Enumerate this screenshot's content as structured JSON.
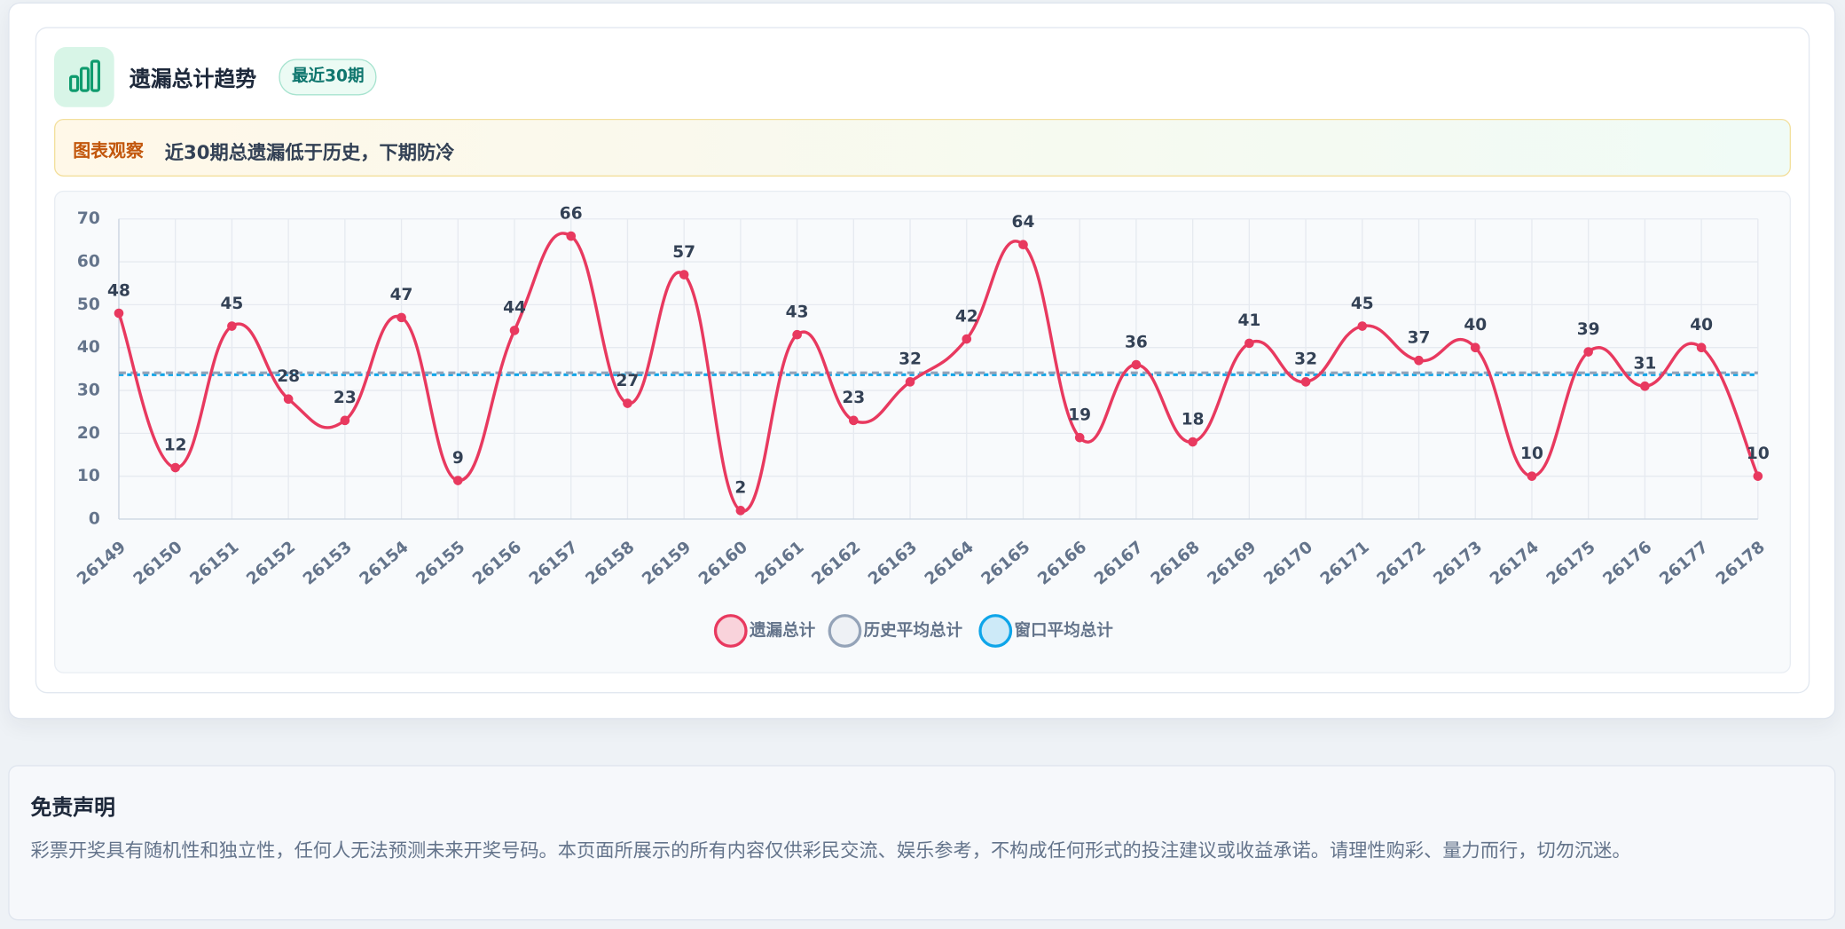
{
  "header": {
    "title": "遗漏总计趋势",
    "badge": "最近30期"
  },
  "observation": {
    "label": "图表观察",
    "text": "近30期总遗漏低于历史，下期防冷"
  },
  "chart_data": {
    "type": "line",
    "categories": [
      "26149",
      "26150",
      "26151",
      "26152",
      "26153",
      "26154",
      "26155",
      "26156",
      "26157",
      "26158",
      "26159",
      "26160",
      "26161",
      "26162",
      "26163",
      "26164",
      "26165",
      "26166",
      "26167",
      "26168",
      "26169",
      "26170",
      "26171",
      "26172",
      "26173",
      "26174",
      "26175",
      "26176",
      "26177",
      "26178"
    ],
    "series": [
      {
        "name": "遗漏总计",
        "color": "#e8395f",
        "values": [
          48,
          12,
          45,
          28,
          23,
          47,
          9,
          44,
          66,
          27,
          57,
          2,
          43,
          23,
          32,
          42,
          64,
          19,
          36,
          18,
          41,
          32,
          45,
          37,
          40,
          10,
          39,
          31,
          40,
          10
        ]
      },
      {
        "name": "历史平均总计",
        "color": "#94a3b8",
        "values": [
          34.1,
          34.1,
          34.1,
          34.1,
          34.1,
          34.1,
          34.1,
          34.1,
          34.1,
          34.1,
          34.1,
          34.1,
          34.1,
          34.1,
          34.1,
          34.1,
          34.1,
          34.1,
          34.1,
          34.1,
          34.1,
          34.1,
          34.1,
          34.1,
          34.1,
          34.1,
          34.1,
          34.1,
          34.1,
          34.1
        ]
      },
      {
        "name": "窗口平均总计",
        "color": "#0ea5e9",
        "values": [
          33.67,
          33.67,
          33.67,
          33.67,
          33.67,
          33.67,
          33.67,
          33.67,
          33.67,
          33.67,
          33.67,
          33.67,
          33.67,
          33.67,
          33.67,
          33.67,
          33.67,
          33.67,
          33.67,
          33.67,
          33.67,
          33.67,
          33.67,
          33.67,
          33.67,
          33.67,
          33.67,
          33.67,
          33.67,
          33.67
        ]
      }
    ],
    "ylim": [
      0,
      70
    ],
    "yticks": [
      0,
      10,
      20,
      30,
      40,
      50,
      60,
      70
    ],
    "grid": true,
    "data_labels": true,
    "legend": "bottom"
  },
  "disclaimer": {
    "title": "免责声明",
    "text": "彩票开奖具有随机性和独立性，任何人无法预测未来开奖号码。本页面所展示的所有内容仅供彩民交流、娱乐参考，不构成任何形式的投注建议或收益承诺。请理性购彩、量力而行，切勿沉迷。"
  }
}
